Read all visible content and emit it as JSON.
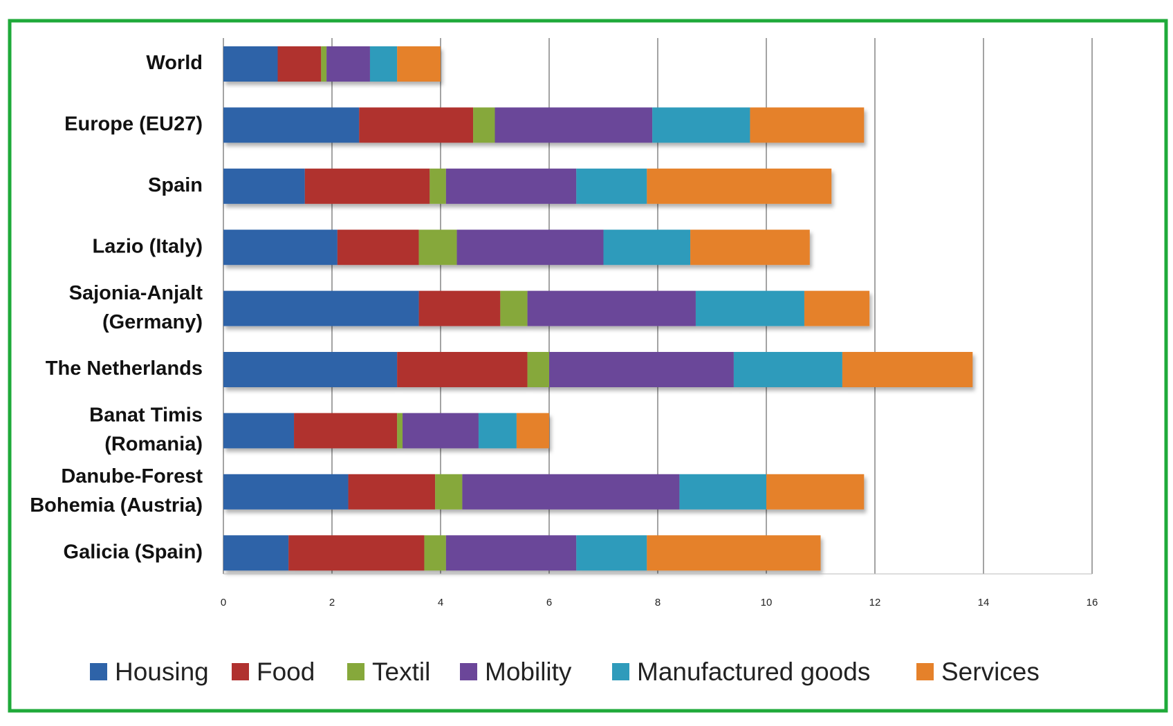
{
  "colors": {
    "frame": "#1faa3a",
    "grid": "#666666",
    "series": [
      "#2e63a8",
      "#b0312f",
      "#86a83b",
      "#6b4699",
      "#2f9bbb",
      "#e5812a"
    ]
  },
  "chart_data": {
    "type": "bar",
    "orientation": "horizontal",
    "stacked": true,
    "title": "",
    "xlabel": "",
    "ylabel": "",
    "xlim": [
      0,
      16
    ],
    "xticks": [
      0,
      2,
      4,
      6,
      8,
      10,
      12,
      14,
      16
    ],
    "grid": "vertical",
    "legend": "bottom",
    "categories": [
      [
        "World"
      ],
      [
        "Europe (EU27)"
      ],
      [
        "Spain"
      ],
      [
        "Lazio (Italy)"
      ],
      [
        "Sajonia-Anjalt",
        "(Germany)"
      ],
      [
        "The Netherlands"
      ],
      [
        "Banat Timis",
        "(Romania)"
      ],
      [
        "Danube-Forest",
        "Bohemia (Austria)"
      ],
      [
        "Galicia (Spain)"
      ]
    ],
    "series": [
      {
        "name": "Housing",
        "values": [
          1.0,
          2.5,
          1.5,
          2.1,
          3.6,
          3.2,
          1.3,
          2.3,
          1.2
        ]
      },
      {
        "name": "Food",
        "values": [
          0.8,
          2.1,
          2.3,
          1.5,
          1.5,
          2.4,
          1.9,
          1.6,
          2.5
        ]
      },
      {
        "name": "Textil",
        "values": [
          0.1,
          0.4,
          0.3,
          0.7,
          0.5,
          0.4,
          0.1,
          0.5,
          0.4
        ]
      },
      {
        "name": "Mobility",
        "values": [
          0.8,
          2.9,
          2.4,
          2.7,
          3.1,
          3.4,
          1.4,
          4.0,
          2.4
        ]
      },
      {
        "name": "Manufactured goods",
        "values": [
          0.5,
          1.8,
          1.3,
          1.6,
          2.0,
          2.0,
          0.7,
          1.6,
          1.3
        ]
      },
      {
        "name": "Services",
        "values": [
          0.8,
          2.1,
          3.4,
          2.2,
          1.2,
          2.4,
          0.6,
          1.8,
          3.2
        ]
      }
    ]
  }
}
